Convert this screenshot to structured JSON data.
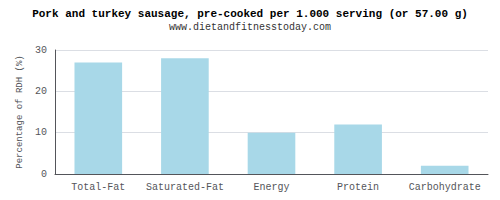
{
  "chart_data": {
    "type": "bar",
    "title": "Pork and turkey sausage, pre-cooked per 1.000 serving (or 57.00 g)",
    "subtitle": "www.dietandfitnesstoday.com",
    "categories": [
      "Total-Fat",
      "Saturated-Fat",
      "Energy",
      "Protein",
      "Carbohydrate"
    ],
    "values": [
      27,
      28,
      10,
      12,
      2
    ],
    "color": "#a8d8e8",
    "ylabel": "Percentage of RDH (%)",
    "ylim": [
      0,
      30
    ],
    "yticks": [
      0,
      10,
      20,
      30
    ],
    "grid": true
  }
}
